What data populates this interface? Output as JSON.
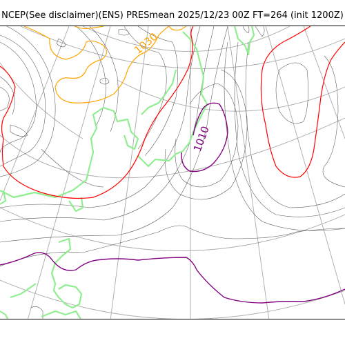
{
  "title": "NCEP(See disclaimer)(ENS) PRESmean 2025/12/23 00Z FT=264 (init 1200Z)",
  "contour_labels": [
    {
      "text": "1030",
      "color": "#ffa500"
    },
    {
      "text": "1010",
      "color": "#800080"
    }
  ],
  "colors": {
    "isobar_1030": "#ffa500",
    "isobar_1020": "#ff0000",
    "isobar_1010": "#800080",
    "coastline": "#90ee90",
    "isobar_minor": "#555555",
    "graticule": "#a9a9a9"
  }
}
